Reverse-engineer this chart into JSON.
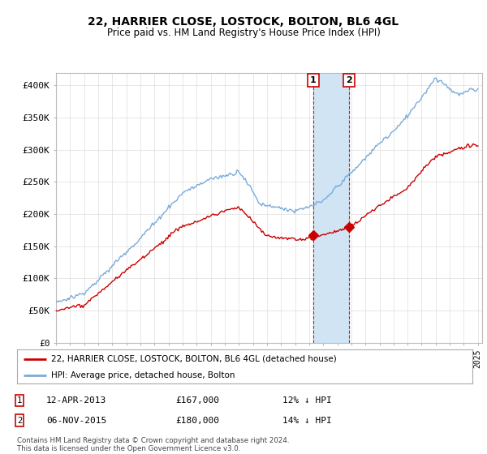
{
  "title": "22, HARRIER CLOSE, LOSTOCK, BOLTON, BL6 4GL",
  "subtitle": "Price paid vs. HM Land Registry's House Price Index (HPI)",
  "ylim": [
    0,
    420000
  ],
  "yticks": [
    0,
    50000,
    100000,
    150000,
    200000,
    250000,
    300000,
    350000,
    400000
  ],
  "ytick_labels": [
    "£0",
    "£50K",
    "£100K",
    "£150K",
    "£200K",
    "£250K",
    "£300K",
    "£350K",
    "£400K"
  ],
  "x_start_year": 1995,
  "x_end_year": 2025,
  "hpi_color": "#7aabdb",
  "price_color": "#cc0000",
  "transaction1_price": 167000,
  "transaction1_label": "12-APR-2013",
  "transaction1_pct": "12% ↓ HPI",
  "transaction2_price": 180000,
  "transaction2_label": "06-NOV-2015",
  "transaction2_pct": "14% ↓ HPI",
  "legend_property": "22, HARRIER CLOSE, LOSTOCK, BOLTON, BL6 4GL (detached house)",
  "legend_hpi": "HPI: Average price, detached house, Bolton",
  "footer": "Contains HM Land Registry data © Crown copyright and database right 2024.\nThis data is licensed under the Open Government Licence v3.0.",
  "shade_color": "#d0e4f4",
  "background_color": "#ffffff",
  "t1_year": 2013.29,
  "t2_year": 2015.84
}
